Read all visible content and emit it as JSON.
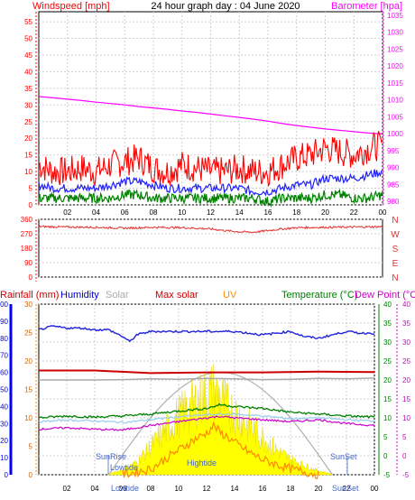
{
  "header": {
    "windspeed_label": "Windspeed [mph]",
    "title": "24 hour graph day : 04 June 2020",
    "barometer_label": "Barometer [hpa]"
  },
  "lower_header": {
    "rainfall_label": "Rainfall (mm)",
    "humidity_label": "Humidity",
    "solar_label": "Solar",
    "maxsolar_label": "Max solar",
    "uv_label": "UV",
    "temperature_label": "Temperature (°C)",
    "dewpoint_label": "Dew Point (°C)"
  },
  "annotations": {
    "sunrise": "SunRise",
    "sunset": "SunSet",
    "lowtide": "Lowtide",
    "hightide": "Hightide",
    "lowtide_bottom": "Lowtide",
    "sunset_bottom": "SunSet"
  },
  "colors": {
    "wind_gust": "#ff0000",
    "wind_avg": "#2020ff",
    "wind_low": "#008000",
    "barometer": "#ff00ff",
    "direction": "#e03030",
    "humidity": "#2222dd",
    "solar": "#aaaaaa",
    "max_solar": "#cc0000",
    "uv": "#ff8800",
    "temperature": "#008000",
    "dew_point": "#cc00cc",
    "rainfall_axis": "#0000ff",
    "solar_fill": "#ffff00",
    "left_axis_wind": "#ff0000"
  },
  "chart_data": [
    {
      "type": "line",
      "id": "wind-barometer",
      "x_ticks": [
        "02",
        "04",
        "06",
        "08",
        "10",
        "12",
        "14",
        "16",
        "18",
        "20",
        "22",
        "00"
      ],
      "y_left_ticks": [
        "0",
        "5",
        "10",
        "15",
        "20",
        "25",
        "30",
        "35",
        "40",
        "45",
        "50",
        "55"
      ],
      "y_left_lim": [
        0,
        58
      ],
      "y_right_ticks": [
        "980",
        "985",
        "990",
        "995",
        "1000",
        "1005",
        "1010",
        "1015",
        "1020",
        "1025",
        "1030",
        "1035"
      ],
      "y_right_lim": [
        979,
        1036
      ],
      "x_lim": [
        0,
        24
      ],
      "series": [
        {
          "key": "barometer",
          "axis": "right",
          "x": [
            0,
            1,
            2,
            3,
            4,
            5,
            6,
            7,
            8,
            9,
            10,
            11,
            12,
            13,
            14,
            15,
            16,
            17,
            18,
            19,
            20,
            21,
            22,
            23,
            24
          ],
          "values": [
            1011,
            1010.6,
            1010.2,
            1009.8,
            1009.3,
            1008.9,
            1008.5,
            1008,
            1007.6,
            1007.2,
            1006.7,
            1006.3,
            1005.8,
            1005.3,
            1004.8,
            1004.3,
            1003.7,
            1003,
            1002.4,
            1001.9,
            1001.4,
            1001,
            1000.6,
            1000.2,
            999.9
          ]
        },
        {
          "key": "wind_gust",
          "axis": "left",
          "x": [
            0,
            1,
            2,
            3,
            4,
            5,
            6,
            7,
            8,
            9,
            10,
            11,
            12,
            13,
            14,
            15,
            16,
            17,
            18,
            19,
            20,
            21,
            22,
            23,
            24
          ],
          "values": [
            12,
            10,
            10,
            11,
            10,
            12,
            13,
            14,
            11,
            10,
            12,
            11,
            10,
            10,
            11,
            10,
            10,
            12,
            14,
            15,
            17,
            16,
            15,
            17,
            18
          ]
        },
        {
          "key": "wind_avg",
          "axis": "left",
          "x": [
            0,
            1,
            2,
            3,
            4,
            5,
            6,
            7,
            8,
            9,
            10,
            11,
            12,
            13,
            14,
            15,
            16,
            17,
            18,
            19,
            20,
            21,
            22,
            23,
            24
          ],
          "values": [
            6,
            5,
            5,
            5,
            5,
            6,
            7,
            7,
            6,
            5,
            5,
            5,
            5,
            5,
            5,
            4,
            4,
            5,
            6,
            6,
            8,
            8,
            8,
            9,
            10
          ]
        },
        {
          "key": "wind_low",
          "axis": "left",
          "x": [
            0,
            1,
            2,
            3,
            4,
            5,
            6,
            7,
            8,
            9,
            10,
            11,
            12,
            13,
            14,
            15,
            16,
            17,
            18,
            19,
            20,
            21,
            22,
            23,
            24
          ],
          "values": [
            2,
            2,
            2,
            2,
            2,
            2,
            3,
            3,
            2,
            2,
            2,
            2,
            2,
            2,
            2,
            2,
            1,
            2,
            2,
            2,
            3,
            3,
            2,
            2,
            3
          ]
        }
      ]
    },
    {
      "type": "line",
      "id": "wind-direction",
      "x_ticks": [],
      "y_left_ticks": [
        "0",
        "90",
        "180",
        "270",
        "360"
      ],
      "y_left_lim": [
        0,
        360
      ],
      "y_right_ticks": [
        "N",
        "E",
        "S",
        "W",
        "N"
      ],
      "x_lim": [
        0,
        24
      ],
      "series": [
        {
          "key": "direction",
          "x": [
            0,
            2,
            4,
            6,
            8,
            10,
            12,
            13,
            14,
            15,
            16,
            17,
            18,
            20,
            22,
            24
          ],
          "values": [
            315,
            312,
            310,
            305,
            310,
            308,
            300,
            290,
            282,
            280,
            290,
            300,
            308,
            310,
            312,
            314
          ]
        }
      ]
    },
    {
      "type": "line",
      "id": "temperature-humidity-solar",
      "x_ticks": [
        "02",
        "04",
        "06",
        "08",
        "10",
        "12",
        "14",
        "16",
        "18",
        "20",
        "22",
        "00"
      ],
      "y_rain_ticks": [
        "0",
        "10",
        "20",
        "30",
        "40",
        "50",
        "60",
        "70",
        "80",
        "90",
        "100"
      ],
      "y_uv_ticks": [
        "0",
        "5",
        "10",
        "15",
        "20",
        "25",
        "30"
      ],
      "y_temp_ticks": [
        "-5",
        "0",
        "5",
        "10",
        "15",
        "20",
        "25",
        "30",
        "35",
        "40"
      ],
      "y_dew_ticks": [
        "-5",
        "0",
        "5",
        "10",
        "15",
        "20",
        "25",
        "30",
        "35",
        "40"
      ],
      "temp_lim": [
        -5,
        40
      ],
      "humidity_lim": [
        0,
        100
      ],
      "solar_lim": [
        0,
        1000
      ],
      "x_lim": [
        0,
        24
      ],
      "series": [
        {
          "key": "humidity",
          "axis": "humidity",
          "x": [
            0,
            1,
            2,
            3,
            4,
            5,
            6,
            6.5,
            7,
            8,
            10,
            12,
            13,
            14,
            15,
            16,
            17,
            18,
            19,
            20,
            21,
            22,
            23,
            24
          ],
          "values": [
            85,
            87,
            86,
            86,
            85,
            85,
            81,
            78,
            82,
            84,
            84,
            84,
            84,
            84,
            83,
            82,
            83,
            84,
            81,
            80,
            82,
            84,
            83,
            83
          ]
        },
        {
          "key": "max_solar",
          "axis": "temp",
          "x": [
            0,
            4,
            8,
            12,
            16,
            20,
            24
          ],
          "values": [
            22.5,
            22.5,
            21.8,
            22,
            22,
            22.2,
            22.1
          ]
        },
        {
          "key": "solar_line",
          "axis": "temp",
          "x": [
            0,
            4,
            6,
            8,
            10,
            12,
            14,
            16,
            18,
            20,
            22,
            24
          ],
          "values": [
            20,
            20,
            20.1,
            20.3,
            20.2,
            20.4,
            20.3,
            20.1,
            20.2,
            20.4,
            20.3,
            20.5
          ]
        },
        {
          "key": "temperature",
          "axis": "temp",
          "x": [
            0,
            2,
            4,
            6,
            8,
            10,
            12,
            13,
            14,
            16,
            18,
            20,
            22,
            24
          ],
          "values": [
            10,
            10.5,
            10.2,
            10.5,
            11,
            11.8,
            12.5,
            13.5,
            13,
            12.5,
            11.5,
            11,
            10.5,
            10.2
          ]
        },
        {
          "key": "dew_point",
          "axis": "temp",
          "x": [
            0,
            2,
            4,
            6,
            8,
            10,
            12,
            13,
            14,
            16,
            18,
            20,
            22,
            24
          ],
          "values": [
            7,
            7.4,
            7,
            6.8,
            8,
            9,
            10,
            10.4,
            10,
            9.5,
            9,
            9.5,
            8.5,
            8
          ]
        },
        {
          "key": "temp_light",
          "axis": "temp",
          "x": [
            0,
            2,
            4,
            6,
            8,
            10,
            12,
            14,
            16,
            18,
            20,
            22,
            24
          ],
          "values": [
            9,
            9.4,
            9.2,
            8.8,
            9.5,
            10.3,
            10.8,
            11,
            10.5,
            9.8,
            10,
            9.5,
            9.2
          ]
        },
        {
          "key": "solar",
          "axis": "solar",
          "x": [
            5,
            6,
            7,
            8,
            9,
            10,
            11,
            12,
            12.5,
            13,
            13.5,
            14,
            15,
            16,
            17,
            18,
            19,
            20,
            21
          ],
          "values": [
            5,
            30,
            80,
            180,
            280,
            380,
            450,
            520,
            540,
            500,
            440,
            400,
            320,
            240,
            160,
            100,
            60,
            25,
            5
          ]
        },
        {
          "key": "uv",
          "axis": "temp",
          "x": [
            6,
            8,
            9,
            10,
            11,
            12,
            12.5,
            13,
            13.5,
            14,
            15,
            16,
            18,
            20
          ],
          "values": [
            -5,
            -3.5,
            -1,
            1.5,
            4,
            6,
            8,
            6,
            5,
            3.5,
            1,
            -1,
            -3.5,
            -5
          ]
        }
      ]
    }
  ]
}
